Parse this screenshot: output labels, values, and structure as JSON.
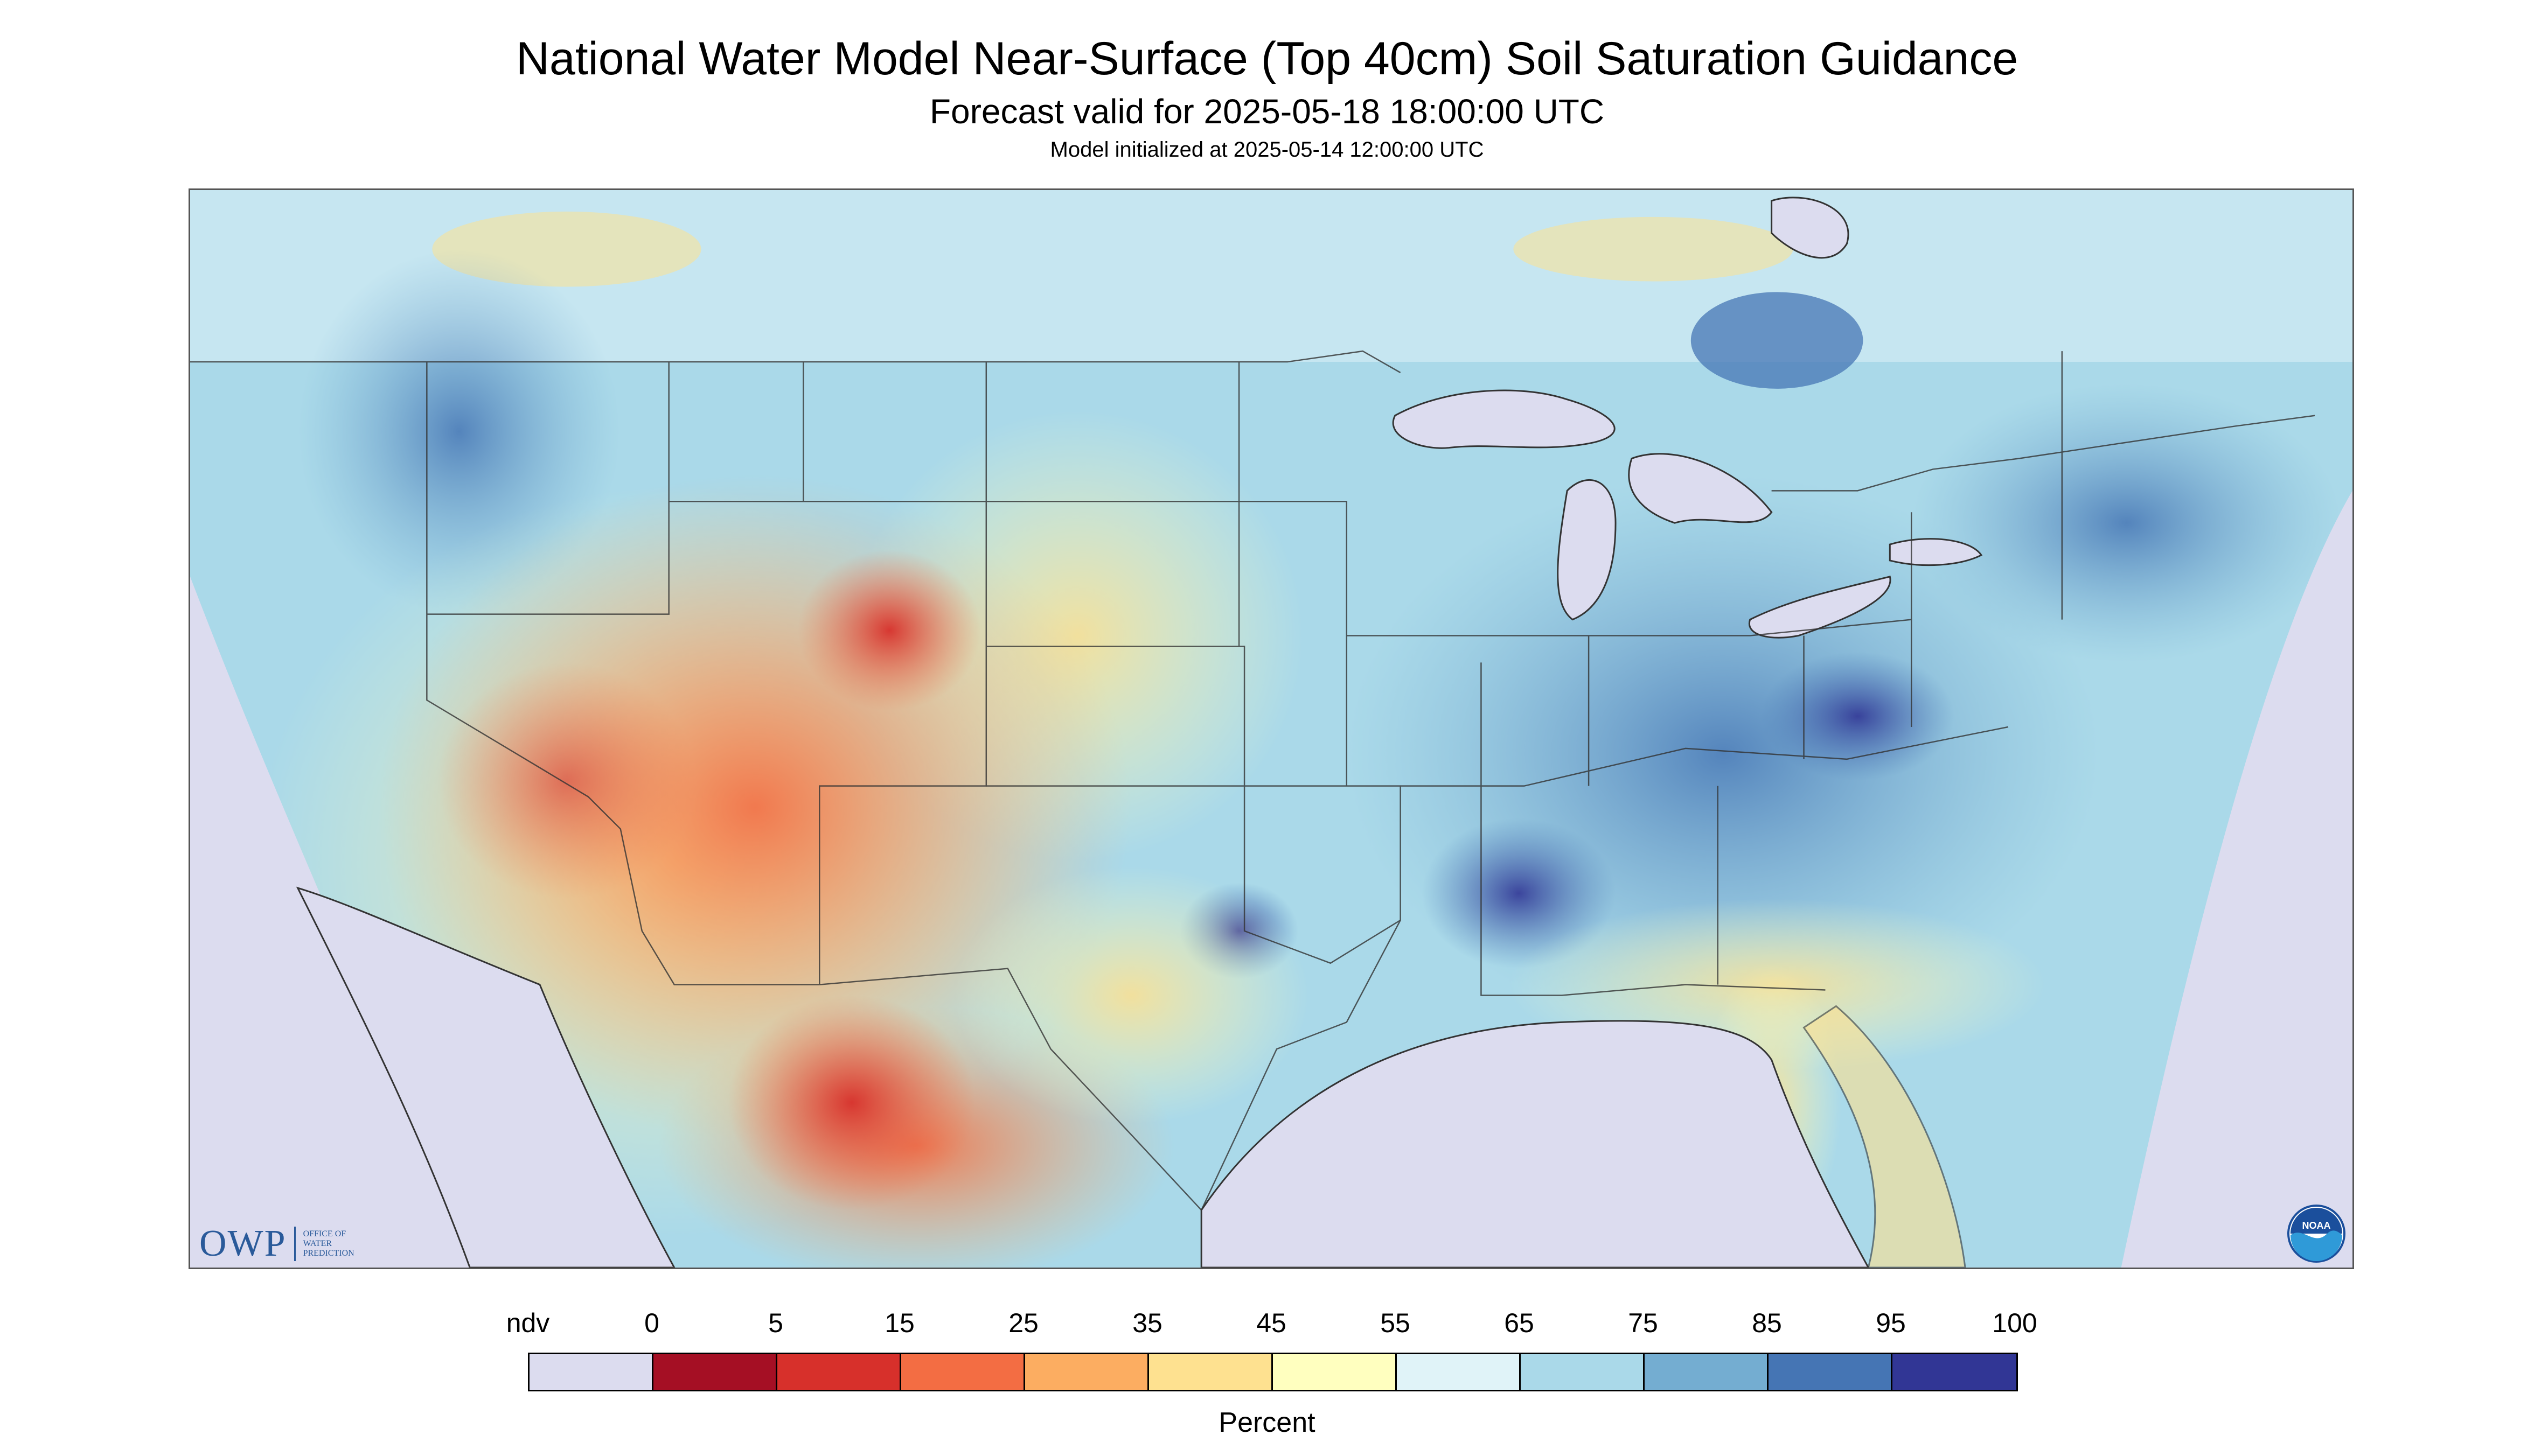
{
  "title": "National Water Model Near-Surface (Top 40cm) Soil Saturation Guidance",
  "subtitle": "Forecast valid for 2025-05-18 18:00:00 UTC",
  "init_line": "Model initialized at 2025-05-14 12:00:00 UTC",
  "logo_left": {
    "letters": "OWP",
    "line1": "Office of",
    "line2": "Water",
    "line3": "Prediction"
  },
  "logo_right": {
    "icon": "noaa-logo-icon",
    "text": "NOAA"
  },
  "legend": {
    "label": "Percent",
    "ndv_label": "ndv",
    "tick_labels": [
      "0",
      "5",
      "15",
      "25",
      "35",
      "45",
      "55",
      "65",
      "75",
      "85",
      "95",
      "100"
    ],
    "swatch_colors": [
      "#dcdcef",
      "#a50f24",
      "#d7302b",
      "#f36d43",
      "#fcad61",
      "#fee190",
      "#ffffbf",
      "#e0f3f8",
      "#aad9e9",
      "#74add1",
      "#4575b4",
      "#313695"
    ]
  },
  "colors": {
    "ndv": "#dcdcef",
    "lakes": "#dcdcef",
    "borders": "#333333"
  }
}
